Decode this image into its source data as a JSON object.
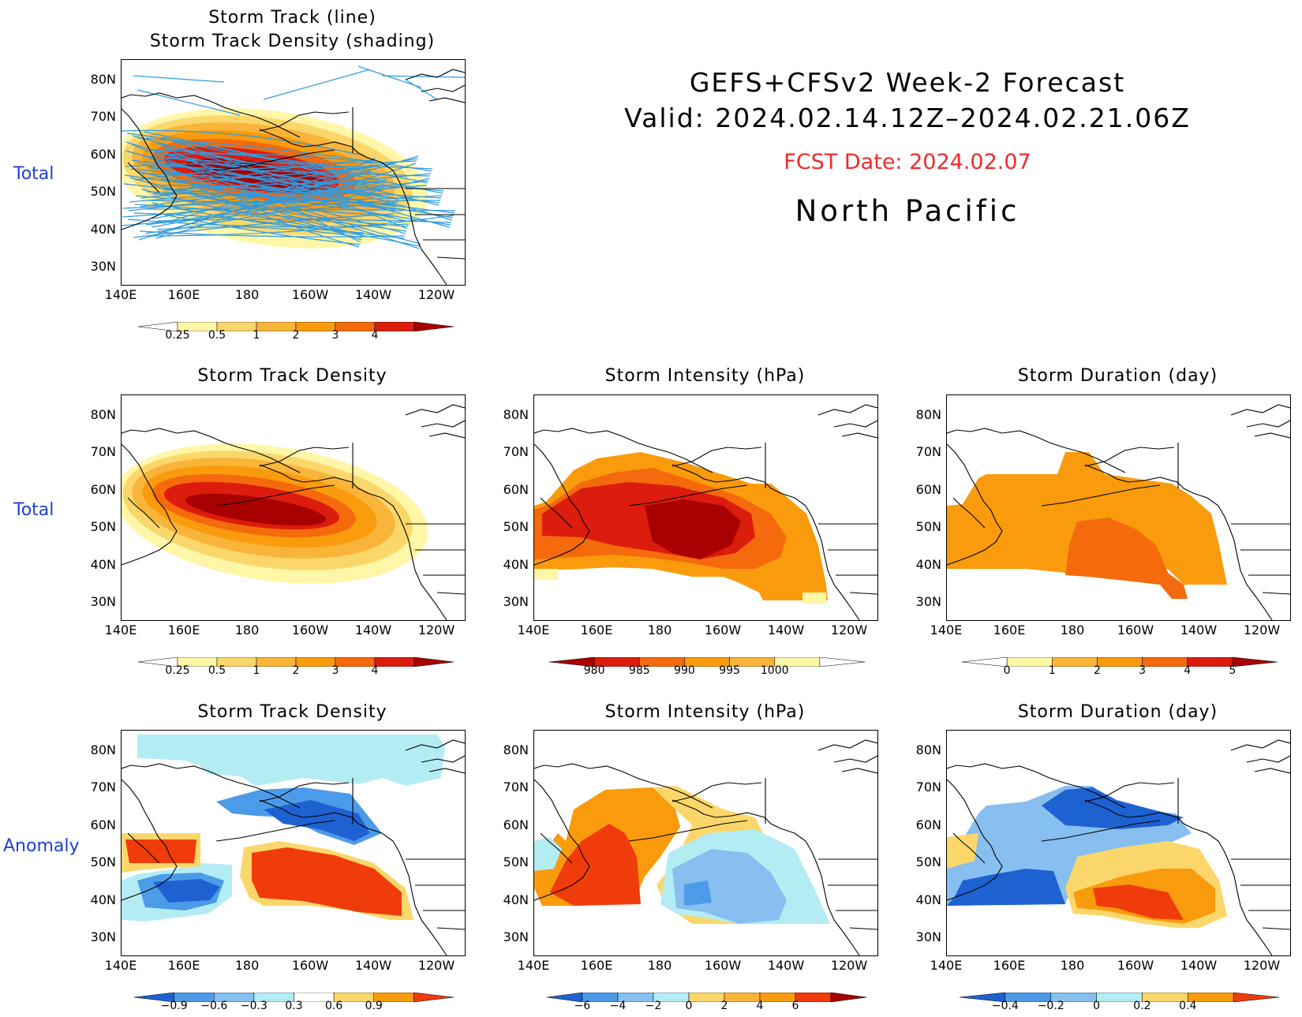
{
  "header": {
    "line1": "GEFS+CFSv2 Week-2 Forecast",
    "line2": "Valid: 2024.02.14.12Z–2024.02.21.06Z",
    "fcst": "FCST Date: 2024.02.07",
    "region": "North Pacific"
  },
  "row_labels": {
    "r1": "Total",
    "r2": "Total",
    "r3": "Anomaly"
  },
  "panels": {
    "p1_title_1": "Storm Track (line)",
    "p1_title_2": "Storm Track Density (shading)",
    "p2_title": "Storm Track Density",
    "p3_title": "Storm Intensity (hPa)",
    "p4_title": "Storm Duration (day)",
    "p5_title": "Storm Track Density",
    "p6_title": "Storm Intensity (hPa)",
    "p7_title": "Storm Duration (day)"
  },
  "axes": {
    "lat": [
      "80N",
      "70N",
      "60N",
      "50N",
      "40N",
      "30N"
    ],
    "lon": [
      "140E",
      "160E",
      "180",
      "160W",
      "140W",
      "120W"
    ]
  },
  "colorbars": {
    "density": [
      "0.25",
      "0.5",
      "1",
      "2",
      "3",
      "4"
    ],
    "intensity": [
      "980",
      "985",
      "990",
      "995",
      "1000"
    ],
    "duration": [
      "0",
      "1",
      "2",
      "3",
      "4",
      "5"
    ],
    "density_anom": [
      "−0.9",
      "−0.6",
      "−0.3",
      "0.3",
      "0.6",
      "0.9"
    ],
    "intensity_anom": [
      "−6",
      "−4",
      "−2",
      "0",
      "2",
      "4",
      "6"
    ],
    "duration_anom": [
      "−0.4",
      "−0.2",
      "0",
      "0.2",
      "0.4"
    ]
  },
  "colors": {
    "lt_yellow": "#fff6a8",
    "yellow": "#fbd76b",
    "lt_orange": "#f9b43a",
    "orange": "#f99b0c",
    "dk_orange": "#f46a0c",
    "red": "#dc1c0c",
    "dk_red": "#a80000",
    "lt_blue": "#b4ecf4",
    "blue": "#86bff0",
    "mid_blue": "#4c9be8",
    "dk_blue": "#1e62d2",
    "track_line": "#2f9be0",
    "anom_red": "#f03c0a"
  }
}
